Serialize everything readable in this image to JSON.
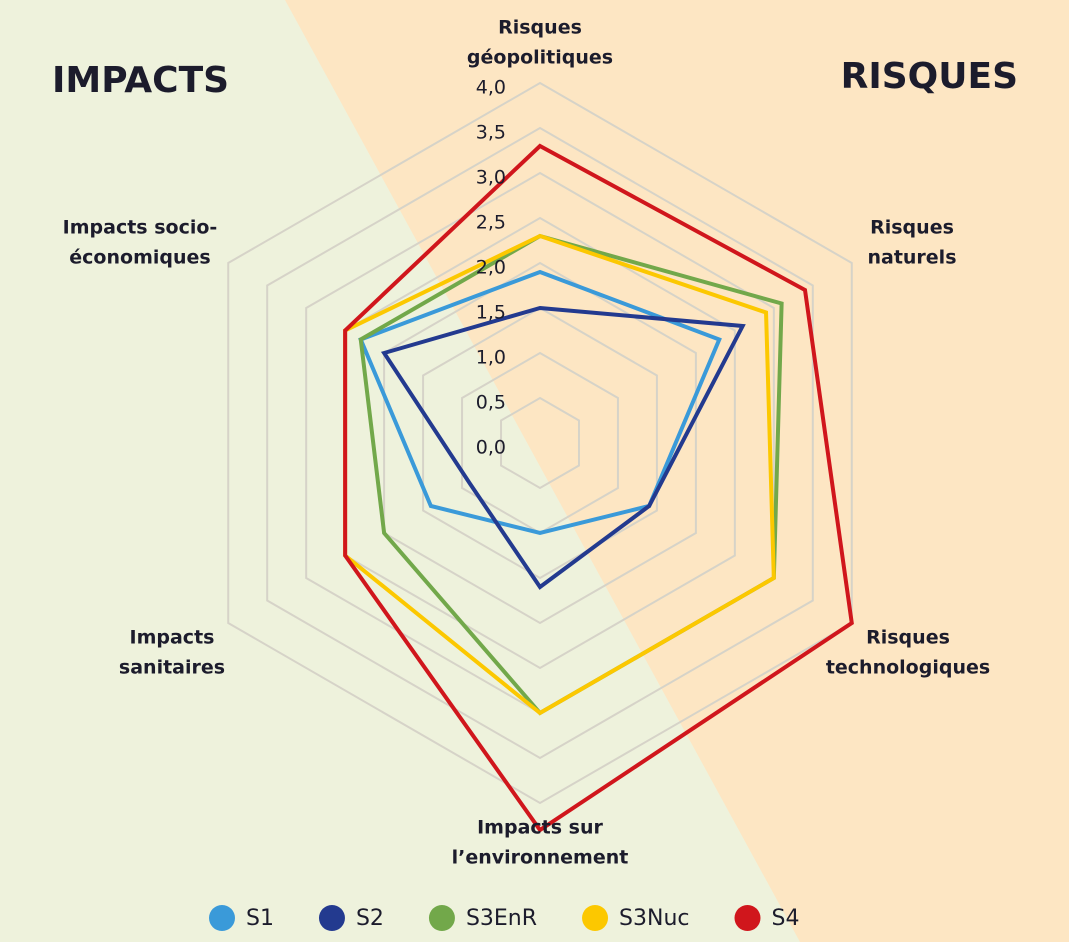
{
  "chart_data": {
    "type": "radar",
    "annotations": [
      "IMPACTS",
      "RISQUES"
    ],
    "categories": [
      [
        "Risques",
        "géopolitiques"
      ],
      [
        "Risques",
        "naturels"
      ],
      [
        "Risques",
        "technologiques"
      ],
      [
        "Impacts sur",
        "l’environnement"
      ],
      [
        "Impacts",
        "sanitaires"
      ],
      [
        "Impacts socio-",
        "économiques"
      ]
    ],
    "ylim": [
      0,
      4
    ],
    "yticks": [
      {
        "value": 0,
        "label": "0,0"
      },
      {
        "value": 0.5,
        "label": "0,5"
      },
      {
        "value": 1,
        "label": "1,0"
      },
      {
        "value": 1.5,
        "label": "1,5"
      },
      {
        "value": 2,
        "label": "2,0"
      },
      {
        "value": 2.5,
        "label": "2,5"
      },
      {
        "value": 3,
        "label": "3,0"
      },
      {
        "value": 3.5,
        "label": "3,5"
      },
      {
        "value": 4,
        "label": "4,0"
      }
    ],
    "grid": true,
    "series": [
      {
        "name": "S1",
        "color": "#3a9ad9",
        "values": [
          1.9,
          2.3,
          1.4,
          1.0,
          1.4,
          2.3
        ]
      },
      {
        "name": "S2",
        "color": "#233a8f",
        "values": [
          1.5,
          2.6,
          1.4,
          1.6,
          0.9,
          2.0
        ]
      },
      {
        "name": "S3EnR",
        "color": "#72a84a",
        "values": [
          2.3,
          3.1,
          3.0,
          3.0,
          2.0,
          2.3
        ]
      },
      {
        "name": "S3Nuc",
        "color": "#fcc800",
        "values": [
          2.3,
          2.9,
          3.0,
          3.0,
          2.5,
          2.5
        ]
      },
      {
        "name": "S4",
        "color": "#d0161c",
        "values": [
          3.3,
          3.4,
          4.0,
          4.3,
          2.5,
          2.5
        ]
      }
    ]
  }
}
